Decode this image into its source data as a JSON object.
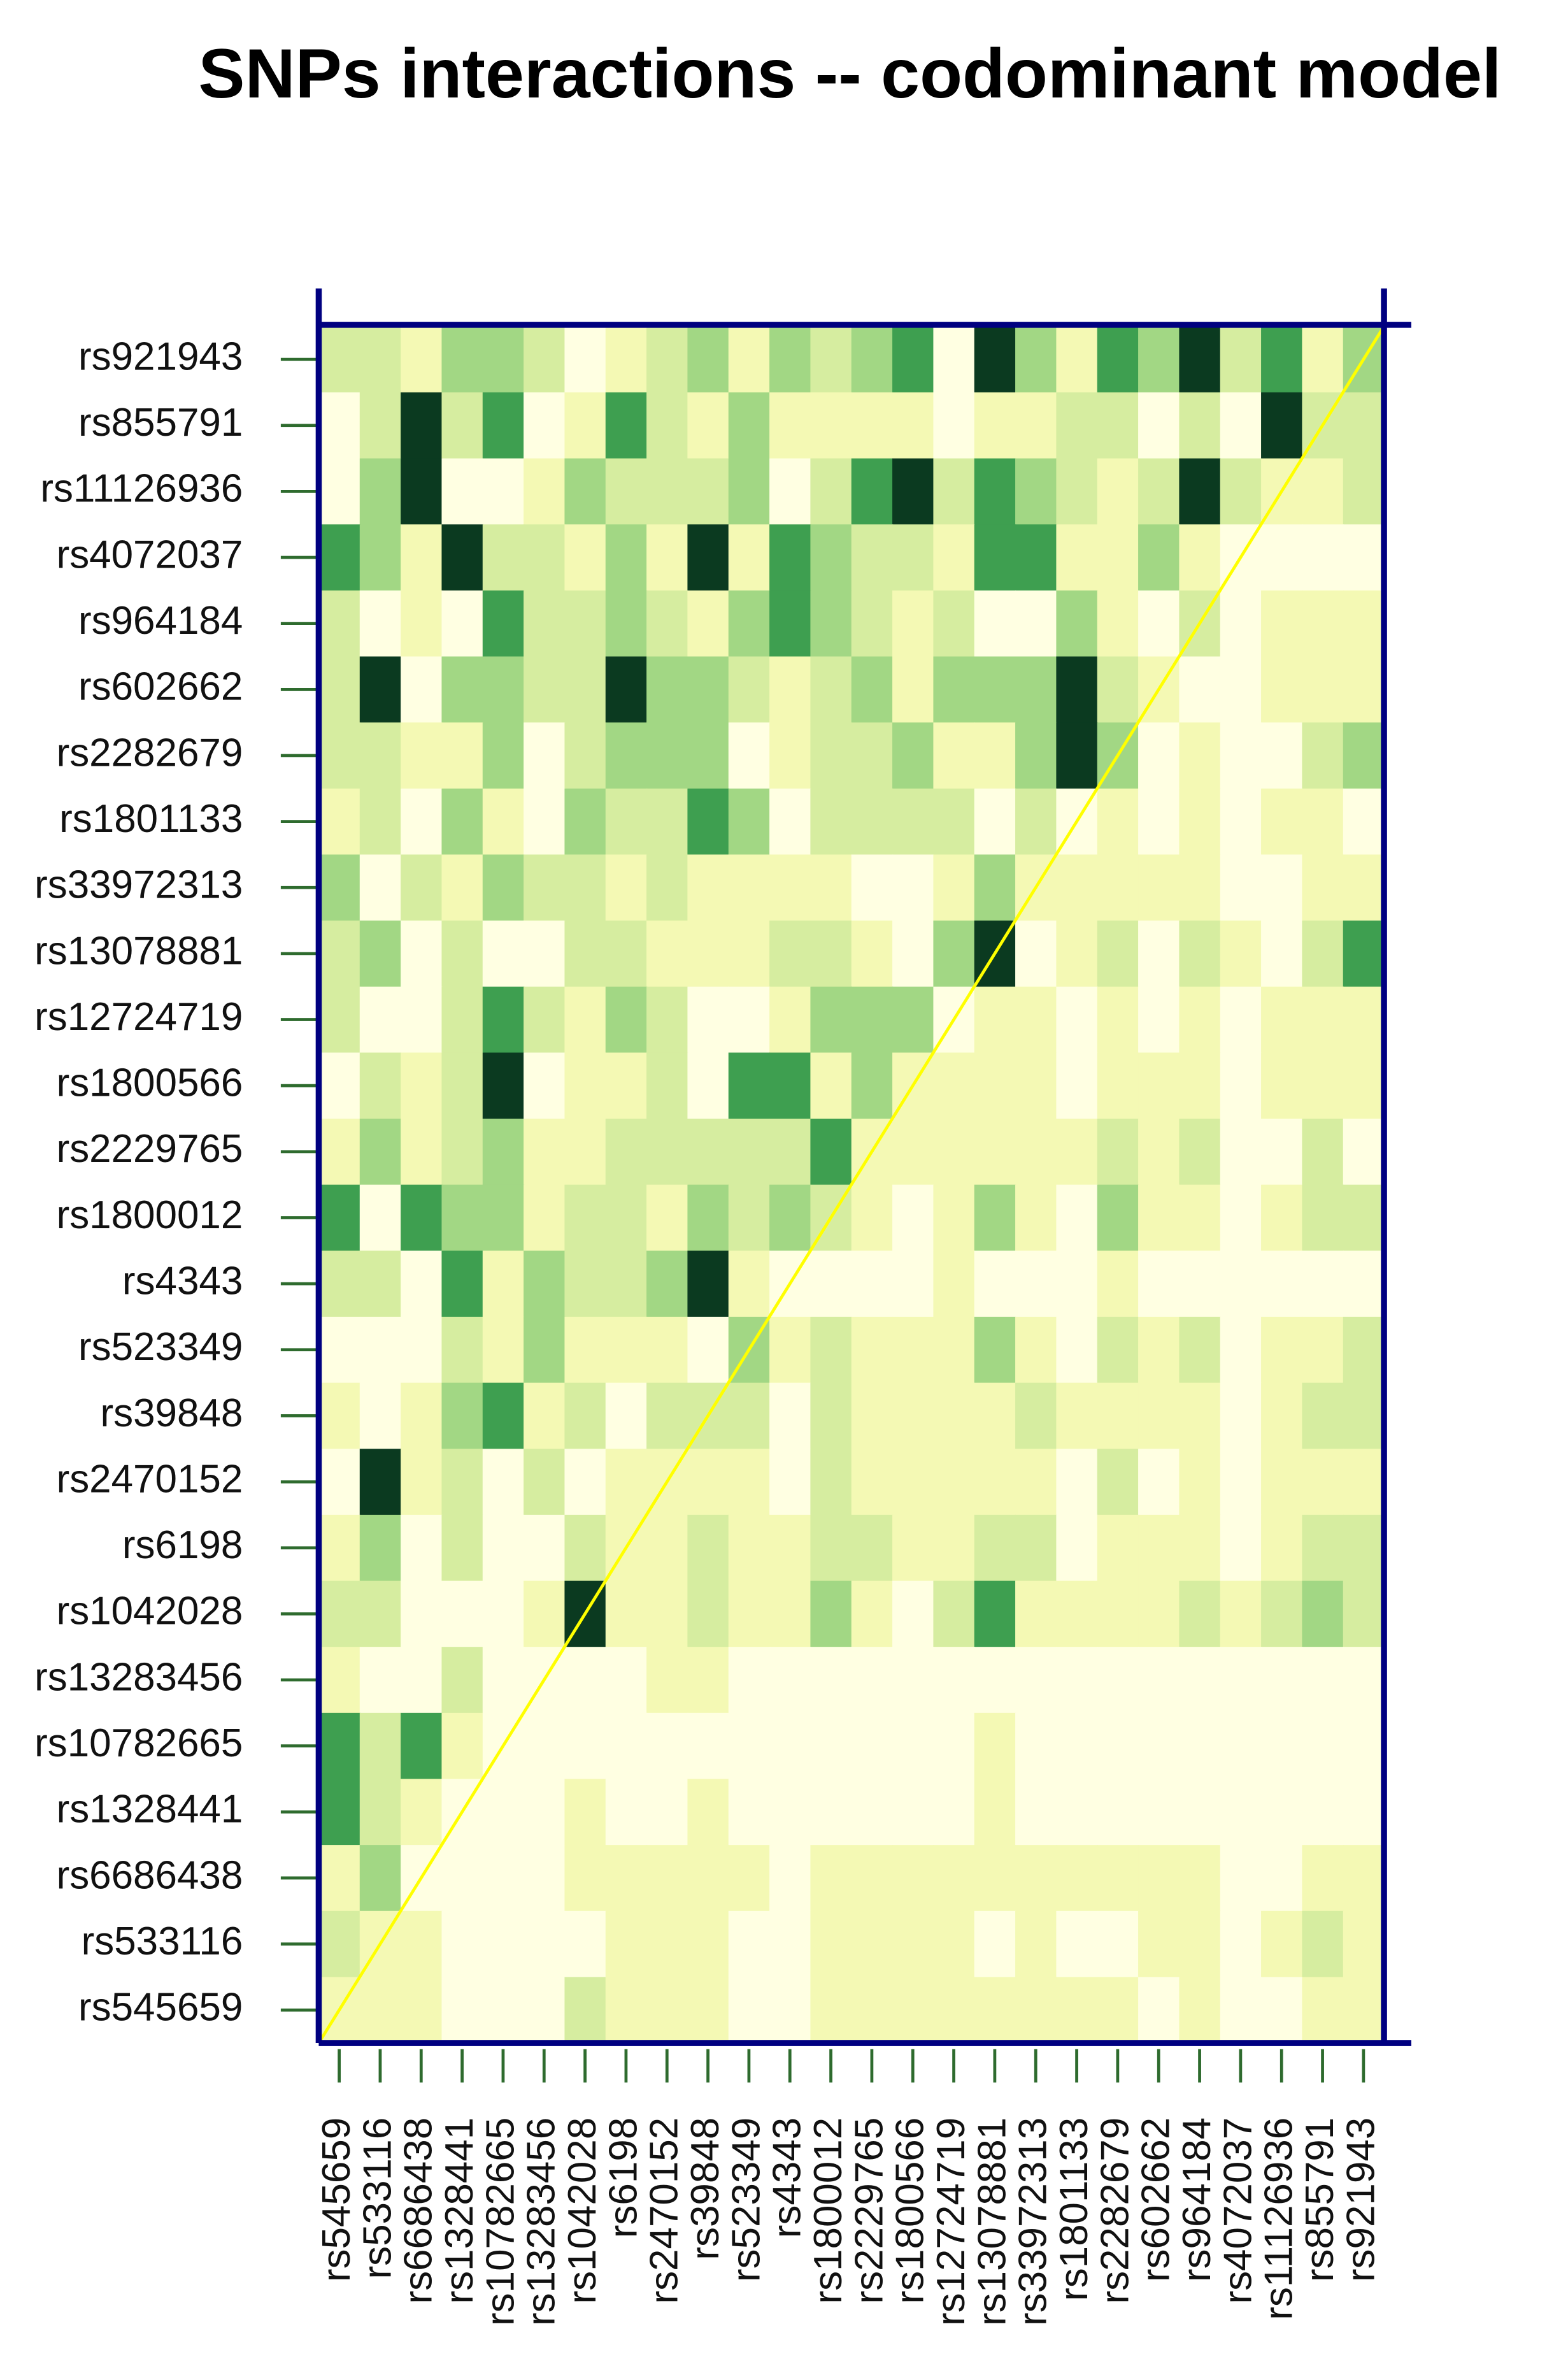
{
  "chart_data": {
    "type": "heatmap",
    "title": "SNPs interactions -- codominant model",
    "x_categories": [
      "rs545659",
      "rs533116",
      "rs6686438",
      "rs1328441",
      "rs10782665",
      "rs13283456",
      "rs1042028",
      "rs6198",
      "rs2470152",
      "rs39848",
      "rs523349",
      "rs4343",
      "rs1800012",
      "rs2229765",
      "rs1800566",
      "rs12724719",
      "rs13078881",
      "rs33972313",
      "rs1801133",
      "rs2282679",
      "rs602662",
      "rs964184",
      "rs4072037",
      "rs11126936",
      "rs855791",
      "rs921943"
    ],
    "y_categories": [
      "rs921943",
      "rs855791",
      "rs11126936",
      "rs4072037",
      "rs964184",
      "rs602662",
      "rs2282679",
      "rs1801133",
      "rs33972313",
      "rs13078881",
      "rs12724719",
      "rs1800566",
      "rs2229765",
      "rs1800012",
      "rs4343",
      "rs523349",
      "rs39848",
      "rs2470152",
      "rs6198",
      "rs1042028",
      "rs13283456",
      "rs10782665",
      "rs1328441",
      "rs6686438",
      "rs533116",
      "rs545659"
    ],
    "colorscale": [
      "#ffffe2",
      "#f4f9b4",
      "#d6eda0",
      "#a2d784",
      "#3e9f50",
      "#0b3a20"
    ],
    "values": [
      [
        2,
        2,
        1,
        3,
        3,
        2,
        0,
        1,
        2,
        3,
        1,
        3,
        2,
        3,
        4,
        0,
        5,
        3,
        1,
        4,
        3,
        5,
        2,
        4,
        1,
        3
      ],
      [
        0,
        2,
        5,
        2,
        4,
        0,
        1,
        4,
        2,
        1,
        3,
        1,
        1,
        1,
        1,
        0,
        1,
        1,
        2,
        2,
        0,
        2,
        0,
        5,
        2,
        2
      ],
      [
        0,
        3,
        5,
        0,
        0,
        1,
        3,
        2,
        2,
        2,
        3,
        0,
        2,
        4,
        5,
        2,
        4,
        3,
        2,
        1,
        2,
        5,
        2,
        1,
        1,
        2
      ],
      [
        4,
        3,
        1,
        5,
        2,
        2,
        1,
        3,
        1,
        5,
        1,
        4,
        3,
        2,
        2,
        1,
        4,
        4,
        1,
        1,
        3,
        1,
        0,
        0,
        0,
        0
      ],
      [
        2,
        0,
        1,
        0,
        4,
        2,
        2,
        3,
        2,
        1,
        3,
        4,
        3,
        2,
        1,
        2,
        0,
        0,
        3,
        1,
        0,
        2,
        0,
        1,
        1,
        1
      ],
      [
        2,
        5,
        0,
        3,
        3,
        2,
        2,
        5,
        3,
        3,
        2,
        1,
        2,
        3,
        1,
        3,
        3,
        3,
        5,
        2,
        1,
        0,
        0,
        1,
        1,
        1
      ],
      [
        2,
        2,
        1,
        1,
        3,
        0,
        2,
        3,
        3,
        3,
        0,
        1,
        2,
        2,
        3,
        1,
        1,
        3,
        5,
        3,
        0,
        1,
        0,
        0,
        2,
        3
      ],
      [
        1,
        2,
        0,
        3,
        1,
        0,
        3,
        2,
        2,
        4,
        3,
        0,
        2,
        2,
        2,
        2,
        0,
        2,
        0,
        1,
        0,
        1,
        0,
        1,
        1,
        0
      ],
      [
        3,
        0,
        2,
        1,
        3,
        2,
        2,
        1,
        2,
        1,
        1,
        1,
        1,
        0,
        0,
        1,
        3,
        1,
        1,
        1,
        1,
        1,
        0,
        0,
        1,
        1
      ],
      [
        2,
        3,
        0,
        2,
        0,
        0,
        2,
        2,
        1,
        1,
        1,
        2,
        2,
        1,
        0,
        3,
        5,
        0,
        1,
        2,
        0,
        2,
        1,
        0,
        2,
        4
      ],
      [
        2,
        0,
        0,
        2,
        4,
        2,
        1,
        3,
        2,
        0,
        0,
        1,
        3,
        3,
        3,
        0,
        1,
        1,
        0,
        1,
        0,
        1,
        0,
        1,
        1,
        1
      ],
      [
        0,
        2,
        1,
        2,
        5,
        0,
        1,
        1,
        2,
        0,
        4,
        4,
        1,
        3,
        1,
        1,
        1,
        1,
        0,
        1,
        1,
        1,
        0,
        1,
        1,
        1
      ],
      [
        1,
        3,
        1,
        2,
        3,
        1,
        1,
        2,
        2,
        2,
        2,
        2,
        4,
        1,
        1,
        1,
        1,
        1,
        1,
        2,
        1,
        2,
        0,
        0,
        2,
        0
      ],
      [
        4,
        0,
        4,
        3,
        3,
        1,
        2,
        2,
        1,
        3,
        2,
        3,
        2,
        1,
        0,
        1,
        3,
        1,
        0,
        3,
        1,
        1,
        0,
        1,
        2,
        2
      ],
      [
        2,
        2,
        0,
        4,
        1,
        3,
        2,
        2,
        3,
        5,
        1,
        0,
        0,
        0,
        0,
        1,
        0,
        0,
        0,
        1,
        0,
        0,
        0,
        0,
        0,
        0
      ],
      [
        0,
        0,
        0,
        2,
        1,
        3,
        1,
        1,
        1,
        0,
        3,
        1,
        2,
        1,
        1,
        1,
        3,
        1,
        0,
        2,
        1,
        2,
        0,
        1,
        1,
        2
      ],
      [
        1,
        0,
        1,
        3,
        4,
        1,
        2,
        0,
        2,
        2,
        2,
        0,
        2,
        1,
        1,
        1,
        1,
        2,
        1,
        1,
        1,
        1,
        0,
        1,
        2,
        2
      ],
      [
        0,
        5,
        1,
        2,
        0,
        2,
        0,
        1,
        1,
        1,
        1,
        0,
        2,
        1,
        1,
        1,
        1,
        1,
        0,
        2,
        0,
        1,
        0,
        1,
        1,
        1
      ],
      [
        1,
        3,
        0,
        2,
        0,
        0,
        2,
        1,
        1,
        2,
        1,
        1,
        2,
        2,
        1,
        1,
        2,
        2,
        0,
        1,
        1,
        1,
        0,
        1,
        2,
        2
      ],
      [
        2,
        2,
        0,
        0,
        0,
        1,
        5,
        1,
        1,
        2,
        1,
        1,
        3,
        1,
        0,
        2,
        4,
        1,
        1,
        1,
        1,
        2,
        1,
        2,
        3,
        2
      ],
      [
        1,
        0,
        0,
        2,
        0,
        0,
        0,
        0,
        1,
        1,
        0,
        0,
        0,
        0,
        0,
        0,
        0,
        0,
        0,
        0,
        0,
        0,
        0,
        0,
        0,
        0
      ],
      [
        4,
        2,
        4,
        1,
        0,
        0,
        0,
        0,
        0,
        0,
        0,
        0,
        0,
        0,
        0,
        0,
        1,
        0,
        0,
        0,
        0,
        0,
        0,
        0,
        0,
        0
      ],
      [
        4,
        2,
        1,
        0,
        0,
        0,
        1,
        0,
        0,
        1,
        0,
        0,
        0,
        0,
        0,
        0,
        1,
        0,
        0,
        0,
        0,
        0,
        0,
        0,
        0,
        0
      ],
      [
        1,
        3,
        0,
        0,
        0,
        0,
        1,
        1,
        1,
        1,
        1,
        0,
        1,
        1,
        1,
        1,
        1,
        1,
        1,
        1,
        1,
        1,
        0,
        0,
        1,
        1
      ],
      [
        2,
        1,
        1,
        0,
        0,
        0,
        0,
        1,
        1,
        1,
        0,
        0,
        1,
        1,
        1,
        1,
        0,
        1,
        0,
        0,
        1,
        1,
        0,
        1,
        2,
        1
      ],
      [
        1,
        1,
        1,
        0,
        0,
        0,
        2,
        1,
        1,
        1,
        0,
        0,
        1,
        1,
        1,
        1,
        1,
        1,
        1,
        1,
        0,
        1,
        0,
        0,
        1,
        1
      ]
    ]
  }
}
